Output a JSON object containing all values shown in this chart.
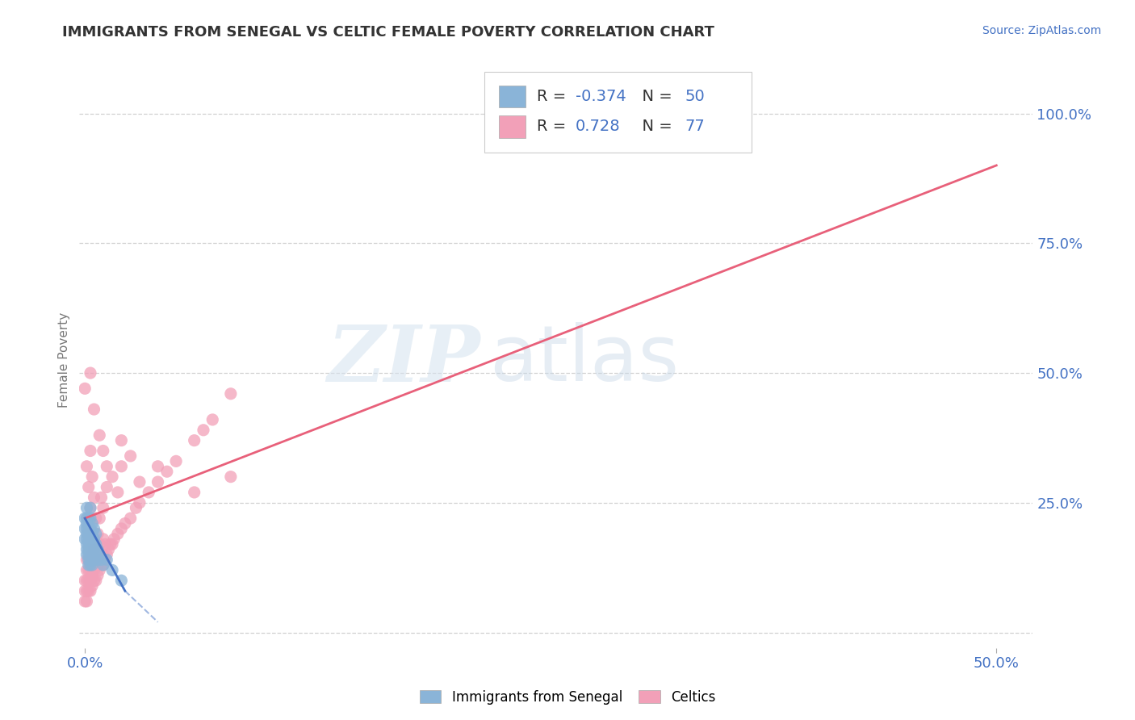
{
  "title": "IMMIGRANTS FROM SENEGAL VS CELTIC FEMALE POVERTY CORRELATION CHART",
  "source": "Source: ZipAtlas.com",
  "xlim": [
    -0.003,
    0.52
  ],
  "ylim": [
    -0.03,
    1.08
  ],
  "ylabel": "Female Poverty",
  "legend_labels": [
    "Immigrants from Senegal",
    "Celtics"
  ],
  "r1": -0.374,
  "n1": 50,
  "r2": 0.728,
  "n2": 77,
  "color_blue": "#8ab4d8",
  "color_pink": "#f2a0b8",
  "line_blue": "#4472c4",
  "line_pink": "#e8607a",
  "watermark_zip": "ZIP",
  "watermark_atlas": "atlas",
  "title_color": "#333333",
  "source_color": "#4472c4",
  "blue_x": [
    0.0,
    0.0,
    0.0,
    0.001,
    0.001,
    0.001,
    0.001,
    0.001,
    0.001,
    0.001,
    0.001,
    0.001,
    0.002,
    0.002,
    0.002,
    0.002,
    0.002,
    0.002,
    0.002,
    0.002,
    0.002,
    0.003,
    0.003,
    0.003,
    0.003,
    0.003,
    0.003,
    0.003,
    0.003,
    0.004,
    0.004,
    0.004,
    0.004,
    0.004,
    0.004,
    0.005,
    0.005,
    0.005,
    0.005,
    0.006,
    0.006,
    0.006,
    0.007,
    0.007,
    0.008,
    0.009,
    0.01,
    0.012,
    0.015,
    0.02
  ],
  "blue_y": [
    0.18,
    0.2,
    0.22,
    0.16,
    0.18,
    0.2,
    0.22,
    0.24,
    0.15,
    0.17,
    0.19,
    0.21,
    0.14,
    0.16,
    0.18,
    0.2,
    0.22,
    0.13,
    0.15,
    0.17,
    0.19,
    0.14,
    0.16,
    0.18,
    0.2,
    0.22,
    0.24,
    0.13,
    0.15,
    0.15,
    0.17,
    0.19,
    0.21,
    0.13,
    0.14,
    0.14,
    0.16,
    0.18,
    0.2,
    0.15,
    0.17,
    0.19,
    0.14,
    0.16,
    0.15,
    0.14,
    0.13,
    0.14,
    0.12,
    0.1
  ],
  "pink_x": [
    0.0,
    0.0,
    0.0,
    0.001,
    0.001,
    0.001,
    0.001,
    0.001,
    0.002,
    0.002,
    0.002,
    0.002,
    0.002,
    0.003,
    0.003,
    0.003,
    0.003,
    0.004,
    0.004,
    0.004,
    0.004,
    0.005,
    0.005,
    0.005,
    0.005,
    0.006,
    0.006,
    0.006,
    0.007,
    0.007,
    0.007,
    0.008,
    0.008,
    0.008,
    0.009,
    0.009,
    0.01,
    0.01,
    0.01,
    0.011,
    0.011,
    0.012,
    0.013,
    0.014,
    0.015,
    0.016,
    0.018,
    0.02,
    0.022,
    0.025,
    0.028,
    0.03,
    0.035,
    0.04,
    0.045,
    0.05,
    0.06,
    0.065,
    0.07,
    0.08,
    0.0,
    0.001,
    0.002,
    0.003,
    0.003,
    0.004,
    0.005,
    0.006,
    0.007,
    0.008,
    0.009,
    0.01,
    0.012,
    0.015,
    0.018,
    0.02,
    0.025
  ],
  "pink_y": [
    0.06,
    0.08,
    0.1,
    0.06,
    0.08,
    0.1,
    0.12,
    0.14,
    0.08,
    0.1,
    0.12,
    0.14,
    0.16,
    0.08,
    0.1,
    0.12,
    0.14,
    0.09,
    0.11,
    0.13,
    0.15,
    0.1,
    0.12,
    0.14,
    0.16,
    0.1,
    0.13,
    0.15,
    0.11,
    0.13,
    0.16,
    0.12,
    0.14,
    0.17,
    0.13,
    0.15,
    0.13,
    0.15,
    0.18,
    0.14,
    0.17,
    0.15,
    0.16,
    0.17,
    0.17,
    0.18,
    0.19,
    0.2,
    0.21,
    0.22,
    0.24,
    0.25,
    0.27,
    0.29,
    0.31,
    0.33,
    0.37,
    0.39,
    0.41,
    0.46,
    0.47,
    0.32,
    0.28,
    0.24,
    0.35,
    0.3,
    0.26,
    0.22,
    0.19,
    0.22,
    0.26,
    0.24,
    0.28,
    0.3,
    0.27,
    0.32,
    0.34
  ],
  "pink_outlier_x": [
    0.003,
    0.005,
    0.008,
    0.01,
    0.012,
    0.02,
    0.03,
    0.04,
    0.06,
    0.08
  ],
  "pink_outlier_y": [
    0.5,
    0.43,
    0.38,
    0.35,
    0.32,
    0.37,
    0.29,
    0.32,
    0.27,
    0.3
  ],
  "pink_line_x0": 0.0,
  "pink_line_y0": 0.22,
  "pink_line_x1": 0.5,
  "pink_line_y1": 0.9,
  "blue_line_x0": 0.0,
  "blue_line_y0": 0.22,
  "blue_line_x1": 0.022,
  "blue_line_y1": 0.08
}
